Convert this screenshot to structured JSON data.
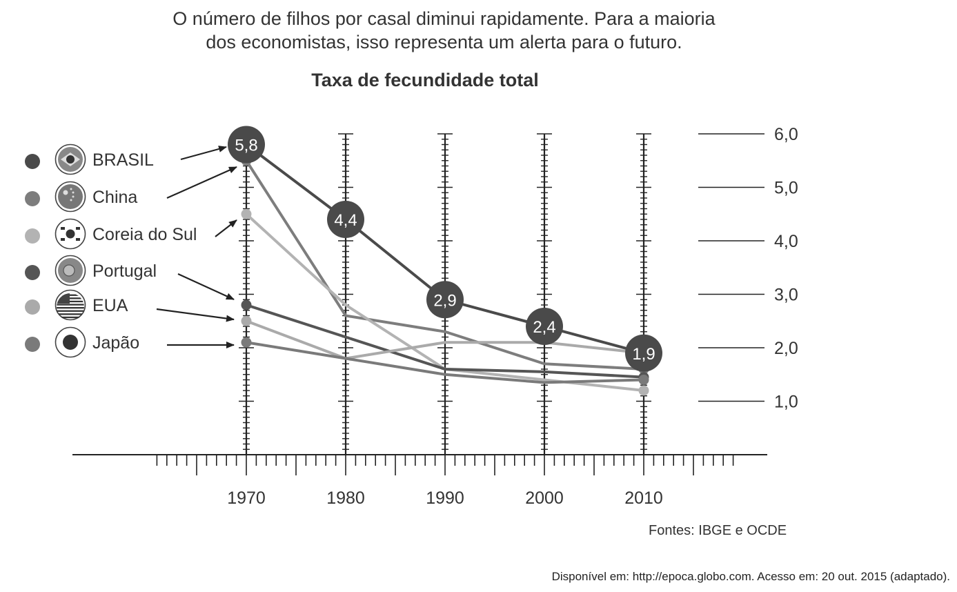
{
  "intro": {
    "line1": "O número de filhos por casal diminui rapidamente. Para a maioria",
    "line2": "dos economistas, isso representa um alerta para o futuro."
  },
  "source": "Fontes: IBGE e OCDE",
  "citation": "Disponível em: http://epoca.globo.com. Acesso em: 20 out. 2015 (adaptado).",
  "chart_data": {
    "type": "line",
    "title": "Taxa de fecundidade total",
    "x": [
      1970,
      1980,
      1990,
      2000,
      2010
    ],
    "x_tick_labels": [
      "1970",
      "1980",
      "1990",
      "2000",
      "2010"
    ],
    "y_ticks": [
      1,
      2,
      3,
      4,
      5,
      6
    ],
    "y_tick_labels": [
      "1,0",
      "2,0",
      "3,0",
      "4,0",
      "5,0",
      "6,0"
    ],
    "ylim": [
      0,
      6
    ],
    "grid": false,
    "legend_position": "left",
    "series": [
      {
        "name": "BRASIL",
        "color": "#4a4a4a",
        "icon": "brazil-flag-icon",
        "values": [
          5.8,
          4.4,
          2.9,
          2.4,
          1.9
        ],
        "value_labels": [
          "5,8",
          "4,4",
          "2,9",
          "2,4",
          "1,9"
        ]
      },
      {
        "name": "China",
        "color": "#7d7d7d",
        "icon": "china-flag-icon",
        "values": [
          5.5,
          2.6,
          2.3,
          1.7,
          1.6
        ]
      },
      {
        "name": "Coreia do Sul",
        "color": "#b3b3b3",
        "icon": "south-korea-flag-icon",
        "values": [
          4.5,
          2.8,
          1.6,
          1.4,
          1.2
        ]
      },
      {
        "name": "Portugal",
        "color": "#555555",
        "icon": "portugal-flag-icon",
        "values": [
          2.8,
          2.2,
          1.6,
          1.55,
          1.45
        ]
      },
      {
        "name": "EUA",
        "color": "#aaaaaa",
        "icon": "usa-flag-icon",
        "values": [
          2.5,
          1.8,
          2.1,
          2.1,
          1.9
        ]
      },
      {
        "name": "Japão",
        "color": "#7a7a7a",
        "icon": "japan-flag-icon",
        "values": [
          2.1,
          1.8,
          1.5,
          1.35,
          1.4
        ]
      }
    ]
  }
}
